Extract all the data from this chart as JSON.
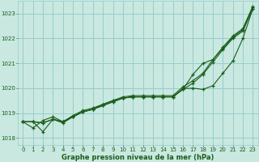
{
  "xlabel": "Graphe pression niveau de la mer (hPa)",
  "bg_color": "#c8e8e0",
  "grid_color": "#99cccc",
  "line_color": "#1a5c1a",
  "ylim": [
    1017.7,
    1023.5
  ],
  "xlim": [
    -0.5,
    23.5
  ],
  "yticks": [
    1018,
    1019,
    1020,
    1021,
    1022,
    1023
  ],
  "xticks": [
    0,
    1,
    2,
    3,
    4,
    5,
    6,
    7,
    8,
    9,
    10,
    11,
    12,
    13,
    14,
    15,
    16,
    17,
    18,
    19,
    20,
    21,
    22,
    23
  ],
  "series": [
    [
      1018.65,
      1018.65,
      1018.6,
      1018.75,
      1018.65,
      1018.85,
      1019.05,
      1019.15,
      1019.3,
      1019.45,
      1019.6,
      1019.65,
      1019.65,
      1019.65,
      1019.65,
      1019.65,
      1019.95,
      1020.2,
      1020.55,
      1021.05,
      1021.55,
      1022.0,
      1022.3,
      1023.2
    ],
    [
      1018.65,
      1018.65,
      1018.25,
      1018.75,
      1018.6,
      1018.85,
      1019.05,
      1019.15,
      1019.35,
      1019.5,
      1019.65,
      1019.7,
      1019.7,
      1019.7,
      1019.7,
      1019.7,
      1020.05,
      1020.3,
      1020.6,
      1021.15,
      1021.65,
      1022.1,
      1022.4,
      1023.3
    ],
    [
      1018.65,
      1018.65,
      1018.6,
      1018.75,
      1018.65,
      1018.85,
      1019.05,
      1019.15,
      1019.3,
      1019.45,
      1019.6,
      1019.65,
      1019.65,
      1019.65,
      1019.65,
      1019.65,
      1019.95,
      1020.55,
      1021.0,
      1021.15,
      1021.6,
      1022.05,
      1022.35,
      1023.25
    ],
    [
      1018.65,
      1018.4,
      1018.7,
      1018.85,
      1018.65,
      1018.9,
      1019.1,
      1019.2,
      1019.35,
      1019.5,
      1019.6,
      1019.65,
      1019.65,
      1019.65,
      1019.65,
      1019.65,
      1019.98,
      1020.0,
      1019.95,
      1020.1,
      1020.6,
      1021.1,
      1022.0,
      1023.2
    ]
  ]
}
